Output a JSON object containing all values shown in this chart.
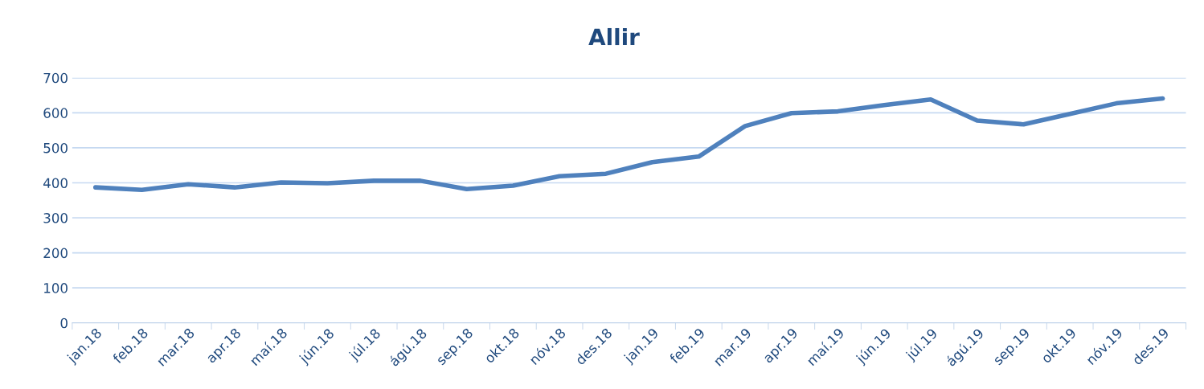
{
  "chart_data": {
    "type": "line",
    "title": "Allir",
    "categories": [
      "jan.18",
      "feb.18",
      "mar.18",
      "apr.18",
      "maí.18",
      "jún.18",
      "júl.18",
      "ágú.18",
      "sep.18",
      "okt.18",
      "nóv.18",
      "des.18",
      "jan.19",
      "feb.19",
      "mar.19",
      "apr.19",
      "maí.19",
      "jún.19",
      "júl.19",
      "ágú.19",
      "sep.19",
      "okt.19",
      "nóv.19",
      "des.19"
    ],
    "series": [
      {
        "color": "#4f81bd",
        "values": [
          387,
          380,
          396,
          387,
          401,
          399,
          406,
          406,
          382,
          392,
          419,
          426,
          459,
          475,
          562,
          599,
          604,
          622,
          638,
          578,
          567,
          597,
          627,
          641
        ]
      }
    ],
    "ylim": [
      0,
      700
    ],
    "yticks": [
      0,
      100,
      200,
      300,
      400,
      500,
      600,
      700
    ],
    "grid": "y",
    "legend": false,
    "marker": "none",
    "line_style": "solid"
  }
}
